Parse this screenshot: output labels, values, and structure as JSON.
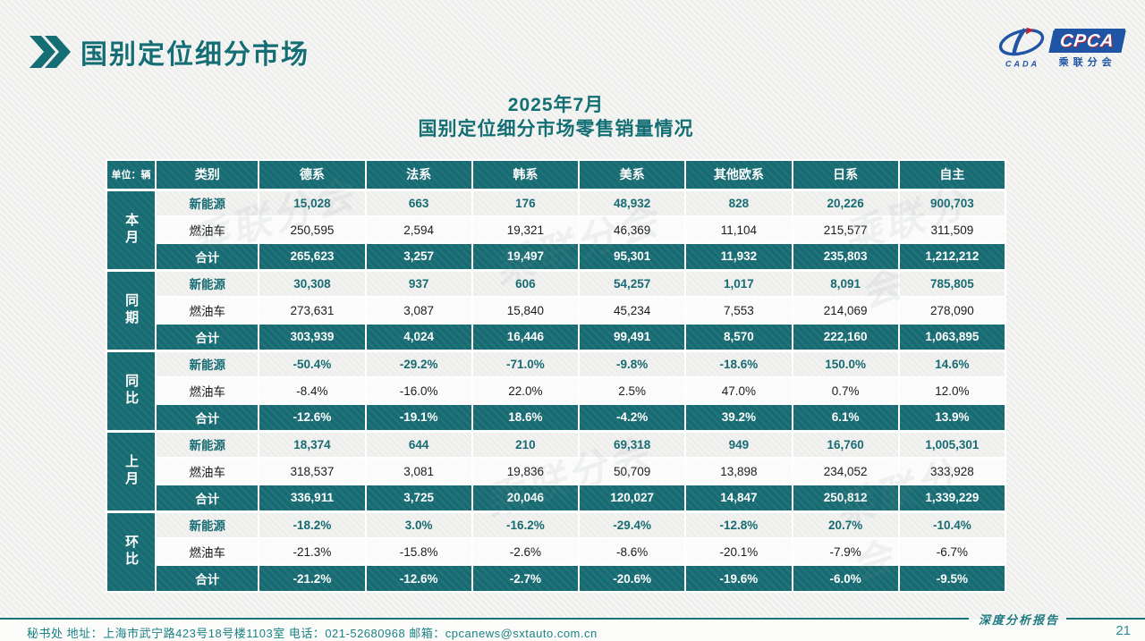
{
  "page": {
    "title": "国别定位细分市场"
  },
  "logo": {
    "cpca": "CPCA",
    "cada": "CADA",
    "subtitle": "乘联分会"
  },
  "subtitle": {
    "line1": "2025年7月",
    "line2": "国别定位细分市场零售销量情况"
  },
  "watermark": {
    "text": "乘联分会"
  },
  "colors": {
    "accent_teal": "#176b72",
    "logo_blue": "#1f55a4",
    "logo_red": "#c22030"
  },
  "table": {
    "unit_label": "单位：辆",
    "category_header": "类别",
    "columns": [
      "德系",
      "法系",
      "韩系",
      "美系",
      "其他欧系",
      "日系",
      "自主"
    ],
    "row_labels": {
      "nev": "新能源",
      "fuel": "燃油车",
      "total": "合计"
    },
    "groups": [
      {
        "label": "本月",
        "nev": [
          "15,028",
          "663",
          "176",
          "48,932",
          "828",
          "20,226",
          "900,703"
        ],
        "fuel": [
          "250,595",
          "2,594",
          "19,321",
          "46,369",
          "11,104",
          "215,577",
          "311,509"
        ],
        "total": [
          "265,623",
          "3,257",
          "19,497",
          "95,301",
          "11,932",
          "235,803",
          "1,212,212"
        ]
      },
      {
        "label": "同期",
        "nev": [
          "30,308",
          "937",
          "606",
          "54,257",
          "1,017",
          "8,091",
          "785,805"
        ],
        "fuel": [
          "273,631",
          "3,087",
          "15,840",
          "45,234",
          "7,553",
          "214,069",
          "278,090"
        ],
        "total": [
          "303,939",
          "4,024",
          "16,446",
          "99,491",
          "8,570",
          "222,160",
          "1,063,895"
        ]
      },
      {
        "label": "同比",
        "nev": [
          "-50.4%",
          "-29.2%",
          "-71.0%",
          "-9.8%",
          "-18.6%",
          "150.0%",
          "14.6%"
        ],
        "fuel": [
          "-8.4%",
          "-16.0%",
          "22.0%",
          "2.5%",
          "47.0%",
          "0.7%",
          "12.0%"
        ],
        "total": [
          "-12.6%",
          "-19.1%",
          "18.6%",
          "-4.2%",
          "39.2%",
          "6.1%",
          "13.9%"
        ]
      },
      {
        "label": "上月",
        "nev": [
          "18,374",
          "644",
          "210",
          "69,318",
          "949",
          "16,760",
          "1,005,301"
        ],
        "fuel": [
          "318,537",
          "3,081",
          "19,836",
          "50,709",
          "13,898",
          "234,052",
          "333,928"
        ],
        "total": [
          "336,911",
          "3,725",
          "20,046",
          "120,027",
          "14,847",
          "250,812",
          "1,339,229"
        ]
      },
      {
        "label": "环比",
        "nev": [
          "-18.2%",
          "3.0%",
          "-16.2%",
          "-29.4%",
          "-12.8%",
          "20.7%",
          "-10.4%"
        ],
        "fuel": [
          "-21.3%",
          "-15.8%",
          "-2.6%",
          "-8.6%",
          "-20.1%",
          "-7.9%",
          "-6.7%"
        ],
        "total": [
          "-21.2%",
          "-12.6%",
          "-2.7%",
          "-20.6%",
          "-19.6%",
          "-6.0%",
          "-9.5%"
        ]
      }
    ]
  },
  "footer": {
    "left": "秘书处   地址：上海市武宁路423号18号楼1103室  电话：021-52680968   邮箱：cpcanews@sxtauto.com.cn",
    "report_label": "深度分析报告",
    "page_number": "21"
  }
}
